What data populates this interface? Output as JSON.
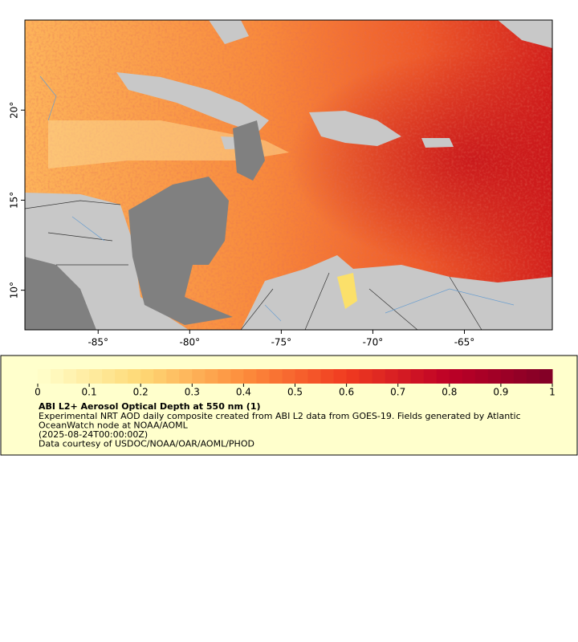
{
  "map": {
    "xlim": [
      -89,
      -60.2
    ],
    "ylim": [
      7.8,
      25
    ],
    "xticks": [
      {
        "value": -85,
        "label": "-85°"
      },
      {
        "value": -80,
        "label": "-80°"
      },
      {
        "value": -75,
        "label": "-75°"
      },
      {
        "value": -70,
        "label": "-70°"
      },
      {
        "value": -65,
        "label": "-65°"
      }
    ],
    "yticks": [
      {
        "value": 10,
        "label": "10°"
      },
      {
        "value": 15,
        "label": "15°"
      },
      {
        "value": 20,
        "label": "20°"
      }
    ]
  },
  "legend": {
    "colorbar_lim": [
      0,
      1
    ],
    "colorbar_ticks": [
      0,
      0.1,
      0.2,
      0.3,
      0.4,
      0.5,
      0.6,
      0.7,
      0.8,
      0.9,
      1
    ],
    "title": "ABI L2+ Aerosol Optical Depth at 550 nm (1)",
    "lines": [
      "Experimental NRT AOD daily composite created from ABI L2 data from GOES-19. Fields generated by Atlantic",
      "OceanWatch node at NOAA/AOML",
      "(2025-08-24T00:00:00Z)",
      "Data courtesy of USDOC/NOAA/OAR/AOML/PHOD"
    ]
  }
}
